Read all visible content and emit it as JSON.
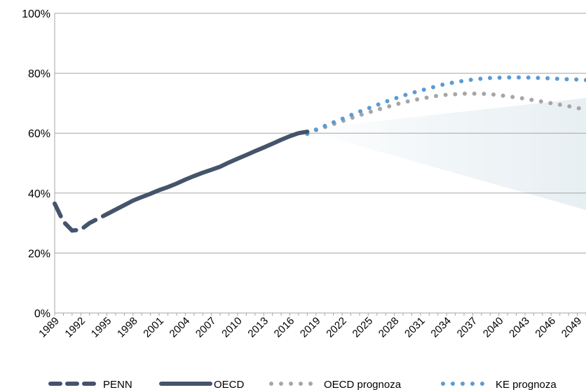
{
  "chart_data": {
    "type": "line",
    "title": "",
    "xlabel": "",
    "ylabel": "",
    "ylim": [
      0,
      100
    ],
    "xlim": [
      1989,
      2050
    ],
    "y_ticks": [
      "0%",
      "20%",
      "40%",
      "60%",
      "80%",
      "100%"
    ],
    "y_tick_values": [
      0,
      20,
      40,
      60,
      80,
      100
    ],
    "x_ticks": [
      "1989",
      "1992",
      "1995",
      "1998",
      "2001",
      "2004",
      "2007",
      "2010",
      "2013",
      "2016",
      "2019",
      "2022",
      "2025",
      "2028",
      "2031",
      "2034",
      "2037",
      "2040",
      "2043",
      "2046",
      "2049"
    ],
    "grid": "horizontal",
    "legend_position": "bottom",
    "colors": {
      "PENN": "#44546a",
      "OECD": "#44546a",
      "OECD prognoza": "#a6a6a6",
      "KE prognoza": "#5b9bd5",
      "grid": "#a6a6a6"
    },
    "series": [
      {
        "name": "PENN",
        "style": "dashed",
        "x": [
          1989,
          1990,
          1991,
          1992,
          1993,
          1994,
          1995
        ],
        "values": [
          36.5,
          30.5,
          27.5,
          27.8,
          30,
          31.5,
          33
        ]
      },
      {
        "name": "OECD",
        "style": "solid",
        "x": [
          1995,
          1996,
          1997,
          1998,
          1999,
          2000,
          2001,
          2002,
          2003,
          2004,
          2005,
          2006,
          2007,
          2008,
          2009,
          2010,
          2011,
          2012,
          2013,
          2014,
          2015,
          2016,
          2017,
          2018
        ],
        "values": [
          33,
          34.5,
          36,
          37.5,
          38.7,
          39.8,
          41,
          42,
          43.2,
          44.5,
          45.7,
          46.8,
          47.8,
          48.8,
          50.2,
          51.5,
          52.7,
          54,
          55.2,
          56.5,
          57.8,
          59,
          60,
          60.5
        ]
      },
      {
        "name": "OECD prognoza",
        "style": "dotted",
        "x": [
          2018,
          2019,
          2020,
          2021,
          2022,
          2023,
          2024,
          2025,
          2026,
          2027,
          2028,
          2029,
          2030,
          2031,
          2032,
          2033,
          2034,
          2035,
          2036,
          2037,
          2038,
          2039,
          2040,
          2041,
          2042,
          2043,
          2044,
          2045,
          2046,
          2047,
          2048,
          2049,
          2050
        ],
        "values": [
          59.8,
          61,
          62,
          63,
          64,
          65,
          66,
          66.9,
          67.8,
          68.6,
          69.5,
          70.2,
          70.9,
          71.5,
          72,
          72.5,
          72.8,
          73,
          73.2,
          73.2,
          73.2,
          73,
          72.7,
          72.3,
          71.9,
          71.5,
          71,
          70.5,
          70,
          69.5,
          69,
          68.4,
          67.9
        ]
      },
      {
        "name": "KE prognoza",
        "style": "dotted",
        "x": [
          2018,
          2019,
          2020,
          2021,
          2022,
          2023,
          2024,
          2025,
          2026,
          2027,
          2028,
          2029,
          2030,
          2031,
          2032,
          2033,
          2034,
          2035,
          2036,
          2037,
          2038,
          2039,
          2040,
          2041,
          2042,
          2043,
          2044,
          2045,
          2046,
          2047,
          2048,
          2049,
          2050
        ],
        "values": [
          59.8,
          61.2,
          62.4,
          63.6,
          64.8,
          66,
          67.2,
          68.3,
          69.4,
          70.5,
          71.5,
          72.5,
          73.4,
          74.2,
          75,
          75.8,
          76.5,
          77,
          77.5,
          77.9,
          78.2,
          78.4,
          78.5,
          78.6,
          78.6,
          78.6,
          78.5,
          78.4,
          78.3,
          78.1,
          78,
          77.9,
          77.7
        ]
      }
    ]
  }
}
